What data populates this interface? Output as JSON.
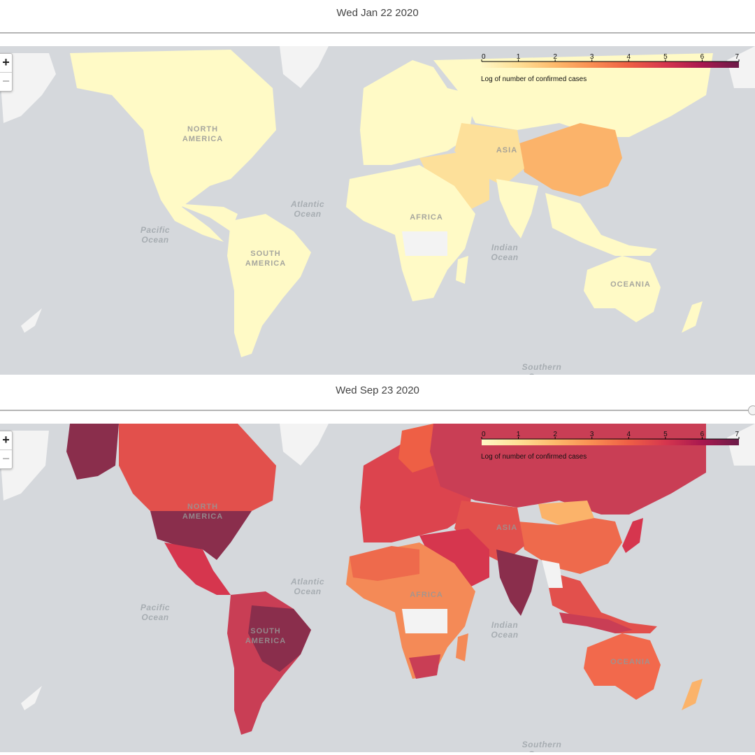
{
  "panels": [
    {
      "date": "Wed Jan 22 2020",
      "theme": "early",
      "zoom": {
        "in": "+",
        "out": "−"
      }
    },
    {
      "date": "Wed Sep 23 2020",
      "theme": "late",
      "zoom": {
        "in": "+",
        "out": "−"
      }
    }
  ],
  "legend": {
    "title": "Log of number of confirmed cases",
    "ticks": [
      "0",
      "1",
      "2",
      "3",
      "4",
      "5",
      "6",
      "7"
    ],
    "domain": [
      0,
      7
    ],
    "colors": [
      "#fff7c4",
      "#fedf95",
      "#fdb96b",
      "#f98e52",
      "#ee5f45",
      "#d6364e",
      "#a8184f",
      "#6b1b48"
    ]
  },
  "labels": {
    "continents": [
      "NORTH AMERICA",
      "SOUTH AMERICA",
      "AFRICA",
      "ASIA",
      "OCEANIA"
    ],
    "oceans": [
      "Atlantic Ocean",
      "Pacific Ocean",
      "Indian Ocean",
      "Southern Ocean"
    ]
  },
  "colors": {
    "ocean": "#d5d8dc",
    "no_data": "#f3f3f3",
    "sep_usa": "#8a2e4c",
    "sep_brazil": "#8a2e4c",
    "sep_india": "#8a2e4c",
    "sep_russia": "#c93e55",
    "sep_canada": "#e2504c",
    "sep_europe": "#dc444e",
    "sep_africa": "#f48a57",
    "sep_china": "#ee6a4c",
    "sep_australia": "#f2694c",
    "jan_base": "#fffac6",
    "jan_china": "#fbb36a",
    "jan_mid": "#fde09a"
  }
}
